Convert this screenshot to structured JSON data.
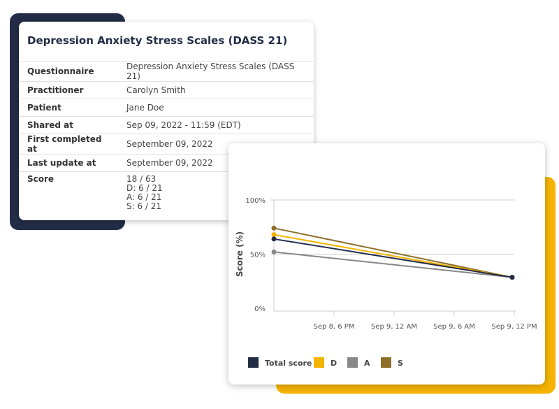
{
  "info_card": {
    "title": "Depression Anxiety Stress Scales (DASS 21)",
    "rows": [
      {
        "label": "Questionnaire",
        "value": "Depression Anxiety Stress Scales (DASS 21)"
      },
      {
        "label": "Practitioner",
        "value": "Carolyn Smith"
      },
      {
        "label": "Patient",
        "value": "Jane Doe"
      },
      {
        "label": "Shared at",
        "value": "Sep 09, 2022 - 11:59 (EDT)"
      },
      {
        "label": "First completed at",
        "value": "September 09, 2022"
      },
      {
        "label": "Last update at",
        "value": "September 09, 2022"
      }
    ],
    "score": {
      "label": "Score",
      "lines": [
        "18 / 63",
        "D: 6 / 21",
        "A: 6 / 21",
        "S: 6 / 21"
      ]
    }
  },
  "chart_data": {
    "type": "line",
    "ylabel": "Score (%)",
    "xlabel": "",
    "ylim": [
      0,
      100
    ],
    "yticks": [
      "0%",
      "50%",
      "100%"
    ],
    "xticks": [
      "Sep 8, 6 PM",
      "Sep 9, 12 AM",
      "Sep 9, 6 AM",
      "Sep 9, 12 PM"
    ],
    "x": [
      "Sep 8, 12 PM",
      "Sep 9, 12 PM"
    ],
    "grid": true,
    "legend_position": "bottom",
    "series": [
      {
        "name": "S",
        "color": "#8e6f2a",
        "values": [
          74,
          28.6
        ]
      },
      {
        "name": "D",
        "color": "#f5b400",
        "values": [
          68,
          28.6
        ]
      },
      {
        "name": "A",
        "color": "#888888",
        "values": [
          52,
          28.6
        ]
      },
      {
        "name": "Total score",
        "color": "#232c47",
        "values": [
          64,
          28.6
        ]
      }
    ],
    "legend": [
      {
        "name": "Total score",
        "color": "#232c47"
      },
      {
        "name": "D",
        "color": "#f5b400"
      },
      {
        "name": "A",
        "color": "#888888"
      },
      {
        "name": "S",
        "color": "#8e6f2a"
      }
    ]
  }
}
